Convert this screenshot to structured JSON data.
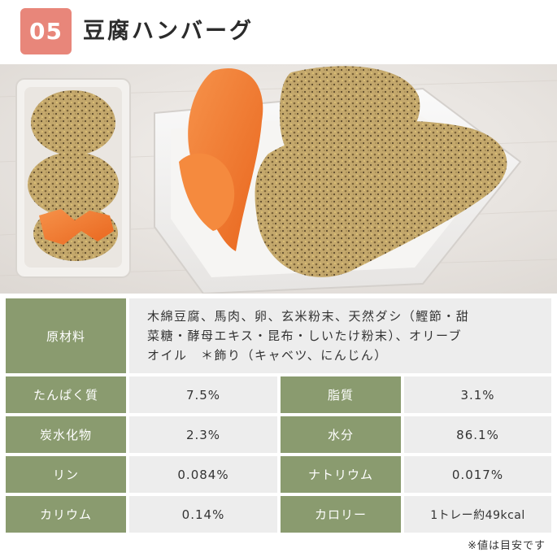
{
  "header": {
    "number": "05",
    "title": "豆腐ハンバーグ"
  },
  "photo": {
    "icon": "tofu-hamburger-photo",
    "colors": {
      "tray": "#f1efec",
      "carrot": "#f07a2e",
      "patty": "#b59a63"
    }
  },
  "ingredients": {
    "label": "原材料",
    "lines": [
      "木綿豆腐、馬肉、卵、玄米粉末、天然ダシ（鰹節・甜",
      "菜糖・酵母エキス・昆布・しいたけ粉末）、オリーブ",
      "オイル　＊飾り（キャベツ、にんじん）"
    ]
  },
  "nutrition": [
    {
      "left_label": "たんぱく質",
      "left_value": "7.5%",
      "right_label": "脂質",
      "right_value": "3.1%"
    },
    {
      "left_label": "炭水化物",
      "left_value": "2.3%",
      "right_label": "水分",
      "right_value": "86.1%"
    },
    {
      "left_label": "リン",
      "left_value": "0.084%",
      "right_label": "ナトリウム",
      "right_value": "0.017%"
    },
    {
      "left_label": "カリウム",
      "left_value": "0.14%",
      "right_label": "カロリー",
      "right_value": "1トレー約49kcal"
    }
  ],
  "note": "※値は目安です",
  "colors": {
    "badge": "#e8867a",
    "label_bg": "#8a9b6f",
    "value_bg": "#ededed"
  }
}
